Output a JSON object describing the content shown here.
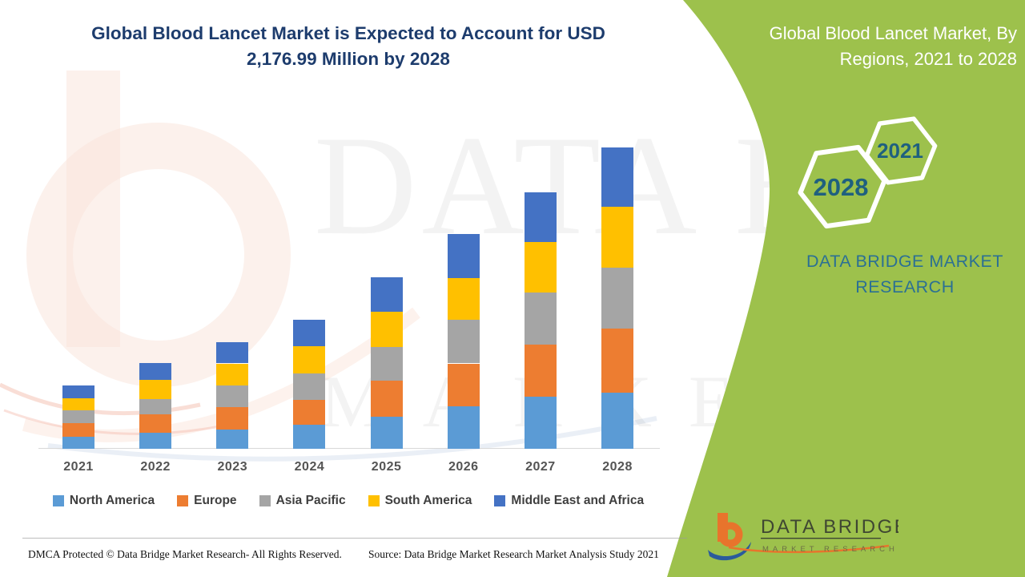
{
  "header": {
    "title_line1": "Global Blood Lancet Market is Expected to Account for USD",
    "title_line2": "2,176.99 Million by 2028"
  },
  "side_panel": {
    "title_line1": "Global Blood Lancet Market, By",
    "title_line2": "Regions, 2021 to 2028",
    "hexagon_small_label": "2021",
    "hexagon_large_label": "2028",
    "brand_line1": "DATA BRIDGE MARKET",
    "brand_line2": "RESEARCH",
    "background_color": "#9dc14c",
    "title_color": "#ffffff",
    "brand_text_color": "#2b7094",
    "hexagon_label_color": "#1f607f"
  },
  "chart_data": {
    "type": "bar",
    "stacked": true,
    "title": "Global Blood Lancet Market is Expected to Account for USD 2,176.99 Million by 2028",
    "unit": "USD Million",
    "categories": [
      "2021",
      "2022",
      "2023",
      "2024",
      "2025",
      "2026",
      "2027",
      "2028"
    ],
    "series": [
      {
        "name": "North America",
        "color": "#5B9BD5",
        "values": [
          87,
          116,
          139,
          174,
          232,
          308,
          377,
          406
        ]
      },
      {
        "name": "Europe",
        "color": "#ED7D31",
        "values": [
          99,
          134,
          163,
          180,
          261,
          308,
          377,
          464
        ]
      },
      {
        "name": "Asia Pacific",
        "color": "#A5A5A5",
        "values": [
          93,
          110,
          157,
          192,
          244,
          313,
          372,
          435
        ]
      },
      {
        "name": "South America",
        "color": "#FFC000",
        "values": [
          87,
          139,
          157,
          192,
          250,
          302,
          366,
          441
        ]
      },
      {
        "name": "Middle East and Africa",
        "color": "#4472C4",
        "values": [
          93,
          122,
          151,
          192,
          250,
          319,
          360,
          430
        ]
      }
    ],
    "totals_estimated": [
      459,
      621,
      767,
      930,
      1237,
      1550,
      1852,
      2176.99
    ],
    "ylim": [
      0,
      2400
    ],
    "grid": false,
    "y_axis_shown": false,
    "legend_position": "bottom",
    "x_axis_label_color": "#545454"
  },
  "footer": {
    "dmca_text": "DMCA Protected © Data Bridge Market Research- All Rights Reserved.",
    "source_text": "Source: Data Bridge Market Research Market Analysis Study 2021"
  },
  "brand_logo": {
    "name": "DATA BRIDGE",
    "tagline": "MARKET RESEARCH"
  },
  "watermark": {
    "line1": "DATA BRIDGE",
    "line2": "MARKET RESEARCH"
  }
}
